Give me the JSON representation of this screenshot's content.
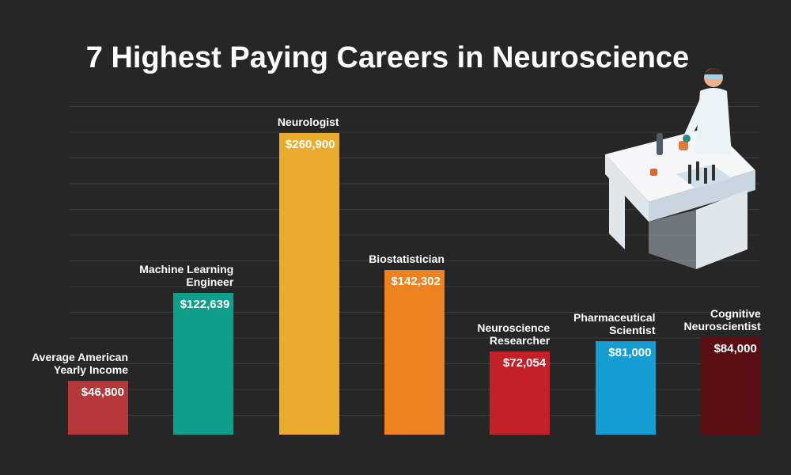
{
  "chart_data": {
    "type": "bar",
    "title": "7 Highest Paying Careers in Neuroscience",
    "categories": [
      "Average American Yearly Income",
      "Machine Learning Engineer",
      "Neurologist",
      "Biostatistician",
      "Neuroscience Researcher",
      "Pharmaceutical Scientist",
      "Cognitive Neuroscientist"
    ],
    "values": [
      46800,
      122639,
      260900,
      142302,
      72054,
      81000,
      84000
    ],
    "value_labels": [
      "$46,800",
      "$122,639",
      "$260,900",
      "$142,302",
      "$72,054",
      "$81,000",
      "$84,000"
    ],
    "colors": [
      "#b5373a",
      "#0f9e8a",
      "#ebac2d",
      "#ee8120",
      "#c42027",
      "#169dd4",
      "#5a0f14"
    ]
  }
}
